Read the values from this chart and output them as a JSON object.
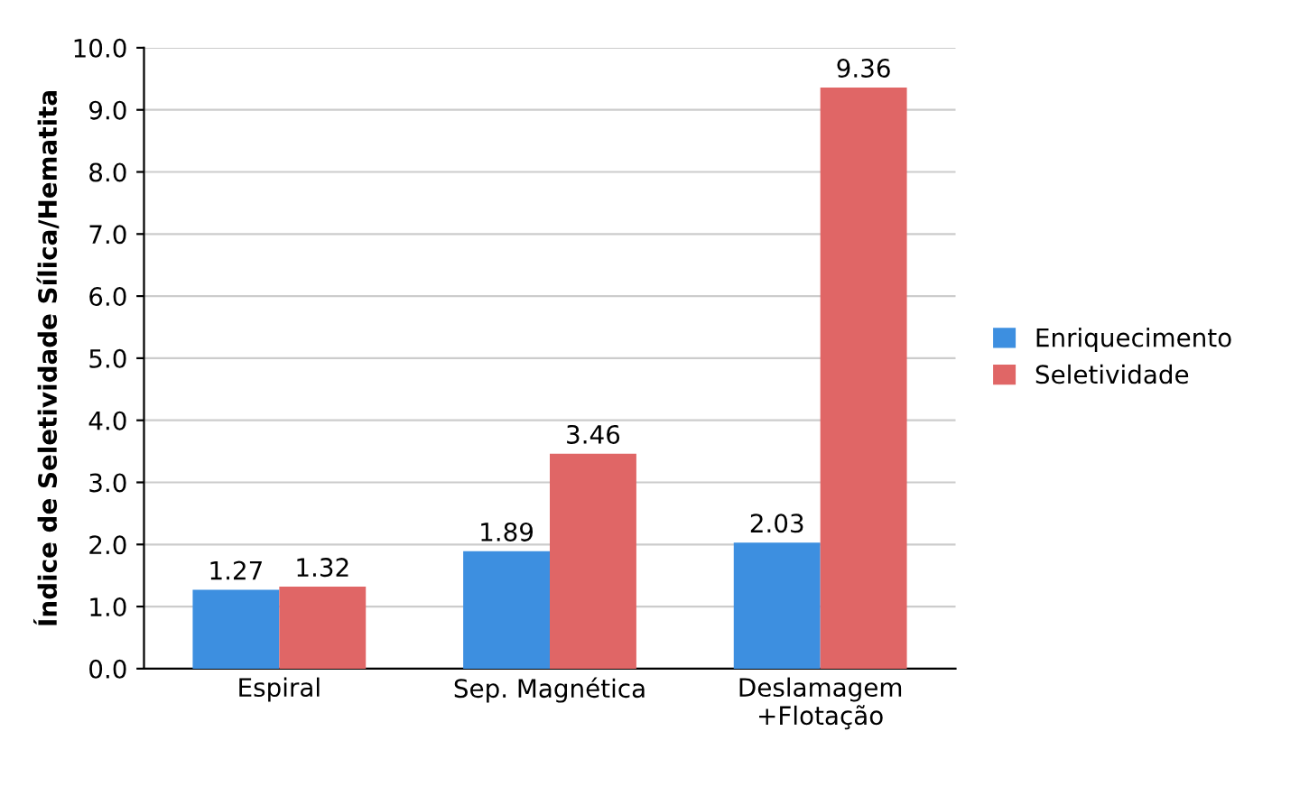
{
  "chart_data": {
    "type": "bar",
    "ylabel": "Índice de Seletividade Sílica/Hematita",
    "categories": [
      "Espiral",
      "Sep. Magnética",
      "Deslamagem\n+Flotação"
    ],
    "series": [
      {
        "name": "Enriquecimento",
        "color": "#3d8fe0",
        "values": [
          1.27,
          1.89,
          2.03
        ]
      },
      {
        "name": "Seletividade",
        "color": "#e06666",
        "values": [
          1.32,
          3.46,
          9.36
        ]
      }
    ],
    "ylim": [
      0,
      10
    ],
    "yticks": [
      {
        "value": 0,
        "label": "0.0"
      },
      {
        "value": 1,
        "label": "1.0"
      },
      {
        "value": 2,
        "label": "2.0"
      },
      {
        "value": 3,
        "label": "3.0"
      },
      {
        "value": 4,
        "label": "4.0"
      },
      {
        "value": 5,
        "label": "5.0"
      },
      {
        "value": 6,
        "label": "6.0"
      },
      {
        "value": 7,
        "label": "7.0"
      },
      {
        "value": 8,
        "label": "8.0"
      },
      {
        "value": 9,
        "label": "9.0"
      },
      {
        "value": 10,
        "label": "10.0"
      }
    ],
    "grid": "y",
    "legend": "right",
    "data_labels": true
  }
}
